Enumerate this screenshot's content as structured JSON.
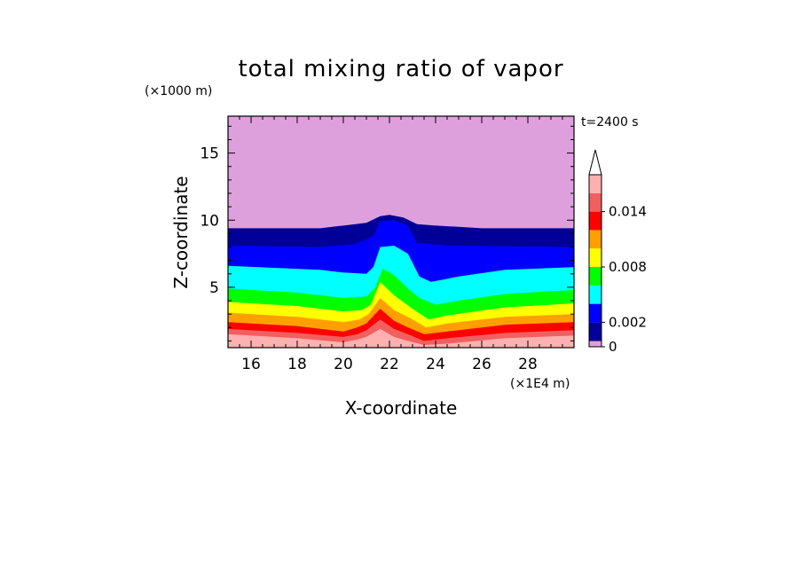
{
  "chart_data": {
    "type": "heatmap",
    "subtype": "filled-contour",
    "title": "total mixing ratio of vapor",
    "xlabel": "X-coordinate",
    "ylabel": "Z-coordinate",
    "x_unit": "(×1E4 m)",
    "y_unit": "(×1000 m)",
    "time_label": "t=2400 s",
    "xlim": [
      15,
      30
    ],
    "ylim": [
      0.5,
      17.75
    ],
    "x_ticks": [
      "16",
      "18",
      "20",
      "22",
      "24",
      "26",
      "28"
    ],
    "y_ticks": [
      "5",
      "10",
      "15"
    ],
    "colorbar": {
      "levels": [
        0,
        0.001,
        0.002,
        0.004,
        0.006,
        0.008,
        0.01,
        0.012,
        0.014,
        0.016
      ],
      "colors": [
        "#000099",
        "#0000ff",
        "#00ffff",
        "#00ff00",
        "#ffff00",
        "#ffa000",
        "#ff0000",
        "#f06060",
        "#ffb0b0"
      ],
      "above_color": "#ffffff",
      "below_color": "#dda0dd",
      "tick_labels": [
        "0",
        "0.002",
        "0.008",
        "0.014"
      ],
      "extend": "max"
    },
    "fields": {
      "background_color": "#dda0dd",
      "layers": [
        {
          "level": 0,
          "color": "#000099",
          "profile": [
            [
              15,
              9.4
            ],
            [
              19,
              9.4
            ],
            [
              20,
              9.6
            ],
            [
              21,
              9.8
            ],
            [
              21.6,
              10.3
            ],
            [
              22,
              10.4
            ],
            [
              22.6,
              10.2
            ],
            [
              23.2,
              9.7
            ],
            [
              24,
              9.6
            ],
            [
              26,
              9.4
            ],
            [
              30,
              9.4
            ]
          ]
        },
        {
          "level": 0.001,
          "color": "#0000ff",
          "profile": [
            [
              15,
              8.1
            ],
            [
              19,
              8.0
            ],
            [
              20.5,
              8.2
            ],
            [
              21.3,
              8.8
            ],
            [
              21.6,
              9.9
            ],
            [
              22.2,
              10.0
            ],
            [
              22.8,
              9.6
            ],
            [
              23.2,
              8.3
            ],
            [
              24.5,
              8.1
            ],
            [
              30,
              8.0
            ]
          ]
        },
        {
          "level": 0.002,
          "color": "#00ffff",
          "profile": [
            [
              15,
              6.6
            ],
            [
              19,
              6.3
            ],
            [
              20,
              6.1
            ],
            [
              21,
              6.0
            ],
            [
              21.3,
              6.5
            ],
            [
              21.6,
              8.0
            ],
            [
              22.2,
              8.1
            ],
            [
              22.8,
              7.5
            ],
            [
              23.3,
              5.8
            ],
            [
              23.8,
              5.4
            ],
            [
              25,
              5.8
            ],
            [
              27,
              6.3
            ],
            [
              30,
              6.5
            ]
          ]
        },
        {
          "level": 0.004,
          "color": "#00ff00",
          "profile": [
            [
              15,
              4.9
            ],
            [
              18,
              4.6
            ],
            [
              20,
              4.2
            ],
            [
              21,
              4.3
            ],
            [
              21.4,
              5.0
            ],
            [
              21.7,
              6.4
            ],
            [
              22.2,
              5.9
            ],
            [
              22.8,
              4.9
            ],
            [
              23.3,
              4.2
            ],
            [
              24,
              3.7
            ],
            [
              25,
              4.0
            ],
            [
              27,
              4.5
            ],
            [
              30,
              4.8
            ]
          ]
        },
        {
          "level": 0.006,
          "color": "#ffff00",
          "profile": [
            [
              15,
              3.9
            ],
            [
              18,
              3.6
            ],
            [
              20,
              3.2
            ],
            [
              20.8,
              3.3
            ],
            [
              21.2,
              3.7
            ],
            [
              21.6,
              5.4
            ],
            [
              22.2,
              4.4
            ],
            [
              23,
              3.4
            ],
            [
              23.7,
              2.6
            ],
            [
              24.5,
              2.9
            ],
            [
              27,
              3.5
            ],
            [
              30,
              3.8
            ]
          ]
        },
        {
          "level": 0.008,
          "color": "#ffa000",
          "profile": [
            [
              15,
              3.1
            ],
            [
              18,
              2.8
            ],
            [
              20,
              2.4
            ],
            [
              20.7,
              2.6
            ],
            [
              21.1,
              3.0
            ],
            [
              21.6,
              4.2
            ],
            [
              22.2,
              3.3
            ],
            [
              22.9,
              2.7
            ],
            [
              23.6,
              2.0
            ],
            [
              24.5,
              2.3
            ],
            [
              27,
              2.8
            ],
            [
              30,
              3.0
            ]
          ]
        },
        {
          "level": 0.01,
          "color": "#ff0000",
          "profile": [
            [
              15,
              2.4
            ],
            [
              18,
              2.1
            ],
            [
              20,
              1.7
            ],
            [
              20.6,
              2.0
            ],
            [
              21.0,
              2.3
            ],
            [
              21.6,
              3.4
            ],
            [
              22.2,
              2.5
            ],
            [
              22.8,
              2.0
            ],
            [
              23.5,
              1.5
            ],
            [
              24.5,
              1.7
            ],
            [
              27,
              2.2
            ],
            [
              30,
              2.4
            ]
          ]
        },
        {
          "level": 0.012,
          "color": "#f06060",
          "profile": [
            [
              15,
              1.9
            ],
            [
              18,
              1.6
            ],
            [
              20,
              1.3
            ],
            [
              20.6,
              1.5
            ],
            [
              21.0,
              1.8
            ],
            [
              21.6,
              2.6
            ],
            [
              22.2,
              1.9
            ],
            [
              22.8,
              1.5
            ],
            [
              23.5,
              1.0
            ],
            [
              24.5,
              1.2
            ],
            [
              27,
              1.6
            ],
            [
              30,
              1.8
            ]
          ]
        },
        {
          "level": 0.014,
          "color": "#ffb0b0",
          "profile": [
            [
              15,
              1.5
            ],
            [
              18,
              1.2
            ],
            [
              20,
              0.9
            ],
            [
              20.6,
              1.1
            ],
            [
              21.0,
              1.3
            ],
            [
              21.6,
              1.9
            ],
            [
              22.2,
              1.3
            ],
            [
              22.8,
              1.0
            ],
            [
              23.5,
              0.7
            ],
            [
              24.5,
              0.8
            ],
            [
              27,
              1.2
            ],
            [
              30,
              1.4
            ]
          ]
        }
      ]
    }
  }
}
